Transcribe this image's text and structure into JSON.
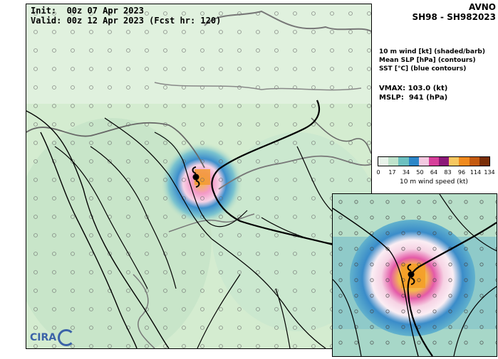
{
  "map": {
    "init_label": "Init:  00z 07 Apr 2023",
    "valid_label": "Valid: 00z 12 Apr 2023 (Fcst hr: 120)",
    "logo_text": "CIRA"
  },
  "header": {
    "model": "AVNO",
    "storm_id": "SH98 - SH982023"
  },
  "legend": {
    "line1": "10 m wind [kt] (shaded/barb)",
    "line2": "Mean SLP [hPa] (contours)",
    "line3": "SST [°C] (blue contours)"
  },
  "stats": {
    "vmax": "VMAX: 103.0 (kt)",
    "mslp": "MSLP:  941 (hPa)"
  },
  "colorbar": {
    "ticks": [
      "0",
      "17",
      "34",
      "50",
      "64",
      "83",
      "96",
      "114",
      "134"
    ],
    "label": "10 m wind speed (kt)",
    "colors": [
      "#e8f3ea",
      "#bfe3cc",
      "#6cc0c0",
      "#2c86c8",
      "#f3c8e0",
      "#d63f9a",
      "#8c1878",
      "#f7c760",
      "#f08a1e",
      "#c45a10",
      "#7a2e08"
    ]
  }
}
